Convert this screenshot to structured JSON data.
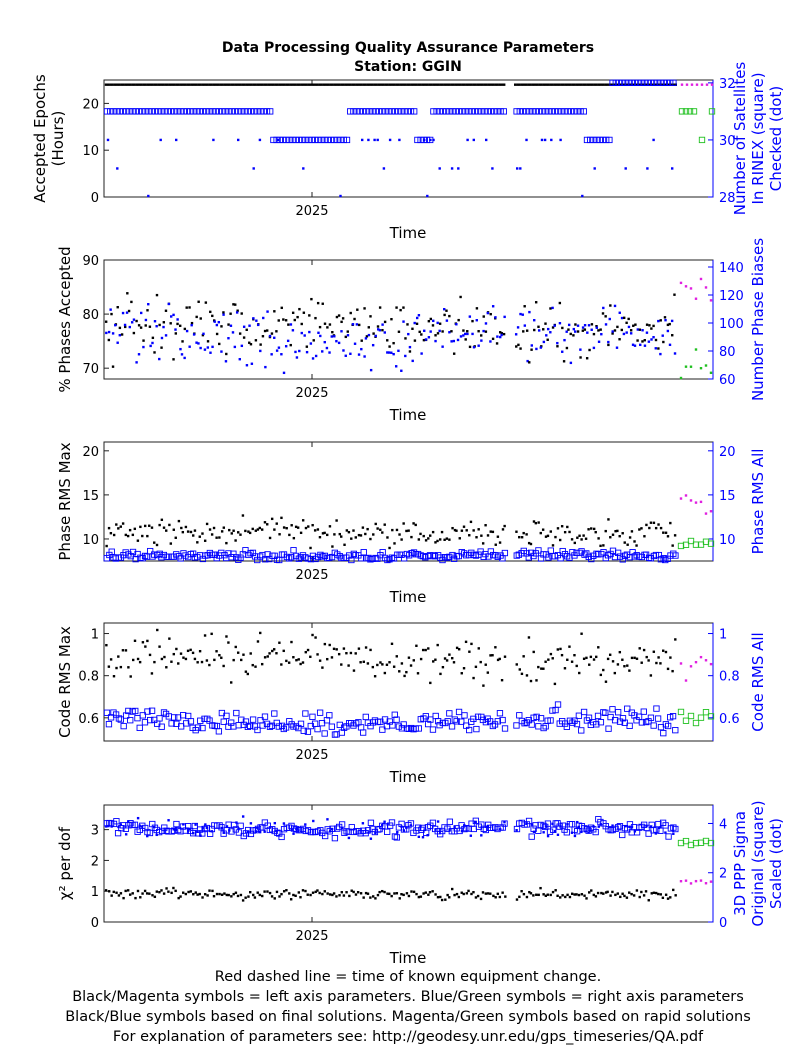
{
  "figure": {
    "title_line1": "Data Processing Quality Assurance Parameters",
    "title_line2": "Station: GGIN",
    "footer": [
      "Red dashed line = time of known equipment change.",
      "Black/Magenta symbols = left axis parameters. Blue/Green symbols = right axis parameters",
      "Black/Blue symbols based on final solutions.  Magenta/Green symbols based on rapid solutions",
      "For explanation of parameters see: http://geodesy.unr.edu/gps_timeseries/QA.pdf"
    ]
  },
  "colors": {
    "final_left": "#000000",
    "final_right": "#0000ff",
    "rapid_left": "#e020e0",
    "rapid_right": "#20c020",
    "right_axis_text": "#0000ff"
  },
  "chart_data": [
    {
      "type": "scatter",
      "xlabel": "Time",
      "xtick_label": "2025",
      "ylabel_left": [
        "Accepted Epochs",
        "(Hours)"
      ],
      "ylabel_right": [
        "Number of Satellites",
        "In RINEX (square)",
        "Checked (dot)"
      ],
      "ylim_left": [
        0,
        25
      ],
      "yticks_left": [
        0,
        10,
        20
      ],
      "ylim_right": [
        28,
        32.1
      ],
      "yticks_right": [
        28,
        30,
        32
      ],
      "left_series": {
        "name": "Accepted Epochs",
        "final_value": 24,
        "rapid_value": 24
      },
      "right_series_square": {
        "name": "In RINEX",
        "levels": [
          32,
          31,
          30
        ]
      },
      "right_series_dot": {
        "name": "Checked",
        "levels": [
          31,
          30,
          29,
          28
        ]
      }
    },
    {
      "type": "scatter",
      "xlabel": "Time",
      "xtick_label": "2025",
      "ylabel_left": [
        "% Phases Accepted"
      ],
      "ylabel_right": [
        "Number Phase Biases"
      ],
      "ylim_left": [
        68,
        90
      ],
      "yticks_left": [
        70,
        80,
        90
      ],
      "ylim_right": [
        60,
        145
      ],
      "yticks_right": [
        60,
        80,
        100,
        120,
        140
      ],
      "left_series": {
        "final_mean": 77.5,
        "final_spread": 2.5,
        "rapid_mean": 84
      },
      "right_series": {
        "final_mean": 90,
        "final_spread": 9,
        "rapid_mean": 66
      }
    },
    {
      "type": "scatter",
      "xlabel": "Time",
      "xtick_label": "2025",
      "ylabel_left": [
        "Phase RMS Max"
      ],
      "ylabel_right": [
        "Phase RMS All"
      ],
      "ylim_left": [
        7.5,
        21
      ],
      "yticks_left": [
        10,
        15,
        20
      ],
      "ylim_right": [
        7.5,
        21
      ],
      "yticks_right": [
        10,
        15,
        20
      ],
      "left_series": {
        "final_mean": 10.7,
        "final_spread": 0.8,
        "rapid_mean": 14
      },
      "right_series": {
        "final_mean": 8.1,
        "final_spread": 0.25,
        "rapid_mean": 9.5
      }
    },
    {
      "type": "scatter",
      "xlabel": "Time",
      "xtick_label": "2025",
      "ylabel_left": [
        "Code RMS Max"
      ],
      "ylabel_right": [
        "Code RMS All"
      ],
      "ylim_left": [
        0.49,
        1.05
      ],
      "yticks_left": [
        0.6,
        0.8,
        1
      ],
      "ylim_right": [
        0.49,
        1.05
      ],
      "yticks_right": [
        0.6,
        0.8,
        1
      ],
      "left_series": {
        "final_mean": 0.88,
        "final_spread": 0.05,
        "rapid_mean": 0.84
      },
      "right_series": {
        "final_mean": 0.58,
        "final_spread": 0.03,
        "rapid_mean": 0.6
      }
    },
    {
      "type": "scatter",
      "xlabel": "Time",
      "xtick_label": "2025",
      "ylabel_left": [
        "χ² per dof"
      ],
      "ylabel_right": [
        "3D PPP Sigma",
        "Original (square)",
        "Scaled (dot)"
      ],
      "ylim_left": [
        0,
        3.8
      ],
      "yticks_left": [
        0,
        1,
        2,
        3
      ],
      "ylim_right": [
        0,
        4.75
      ],
      "yticks_right": [
        0,
        2,
        4
      ],
      "left_series": {
        "final_mean": 0.9,
        "final_spread": 0.08,
        "rapid_mean": 1.3
      },
      "right_series": {
        "final_mean": 3.8,
        "final_spread": 0.15,
        "rapid_mean": 3.2
      }
    }
  ]
}
